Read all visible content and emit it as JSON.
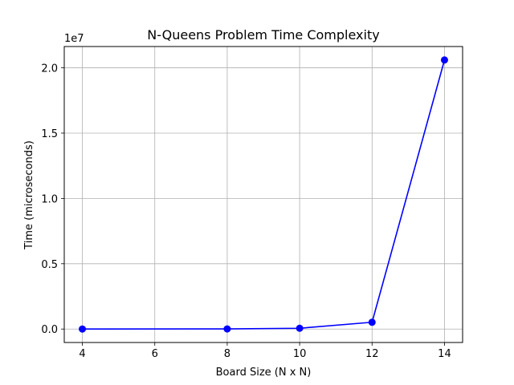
{
  "chart_data": {
    "type": "line",
    "title": "N-Queens Problem Time Complexity",
    "xlabel": "Board Size (N x N)",
    "ylabel": "Time (microseconds)",
    "y_offset_label": "1e7",
    "xlim": [
      3.5,
      14.5
    ],
    "ylim": [
      -1030000,
      21630000
    ],
    "x_ticks": [
      4,
      6,
      8,
      10,
      12,
      14
    ],
    "x_tick_labels": [
      "4",
      "6",
      "8",
      "10",
      "12",
      "14"
    ],
    "y_ticks": [
      0,
      5000000,
      10000000,
      15000000,
      20000000
    ],
    "y_tick_labels": [
      "0.0",
      "0.5",
      "1.0",
      "1.5",
      "2.0"
    ],
    "grid": true,
    "series": [
      {
        "x": [
          4,
          8,
          10,
          12,
          14
        ],
        "y": [
          300,
          10000,
          60000,
          520000,
          20600000
        ],
        "color": "#0000ff",
        "marker": "circle"
      }
    ]
  }
}
